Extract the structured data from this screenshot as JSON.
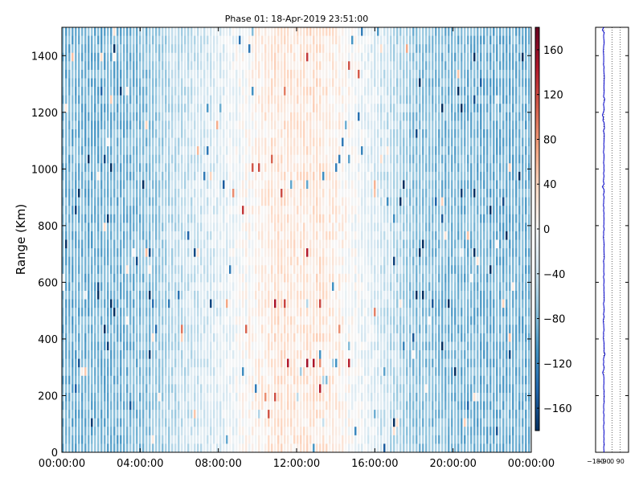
{
  "chart_data": [
    {
      "type": "heatmap",
      "title": "Phase 01: 18-Apr-2019 23:51:00",
      "xlabel": "",
      "ylabel": "Range (Km)",
      "x_tick_labels": [
        "00:00:00",
        "04:00:00",
        "08:00:00",
        "12:00:00",
        "16:00:00",
        "20:00:00",
        "00:00:00"
      ],
      "y_ticks": [
        0,
        200,
        400,
        600,
        800,
        1000,
        1200,
        1400
      ],
      "ylim": [
        0,
        1500
      ],
      "colorbar": {
        "colormap": "RdBu_r",
        "range": [
          -180,
          180
        ],
        "ticks": [
          -160,
          -120,
          -80,
          -40,
          0,
          40,
          80,
          120,
          160
        ]
      },
      "column_mean_phase_by_hour": {
        "hours": [
          0,
          2,
          4,
          6,
          8,
          10,
          11,
          12,
          13,
          14,
          16,
          18,
          20,
          22,
          24
        ],
        "values": [
          -85,
          -85,
          -80,
          -45,
          -25,
          10,
          25,
          20,
          25,
          15,
          -25,
          -70,
          -80,
          -85,
          -85
        ]
      },
      "colors": {
        "low": "#053061",
        "mid": "#f7f7f7",
        "high": "#67001f"
      }
    },
    {
      "type": "line",
      "title": "",
      "x_tick_labels": [
        "-180",
        "-90",
        "0",
        "90"
      ],
      "xlim": [
        -180,
        180
      ],
      "ylim": [
        0,
        1500
      ],
      "grid": true,
      "series_color": "#0000cc",
      "approx_value": -90
    }
  ]
}
